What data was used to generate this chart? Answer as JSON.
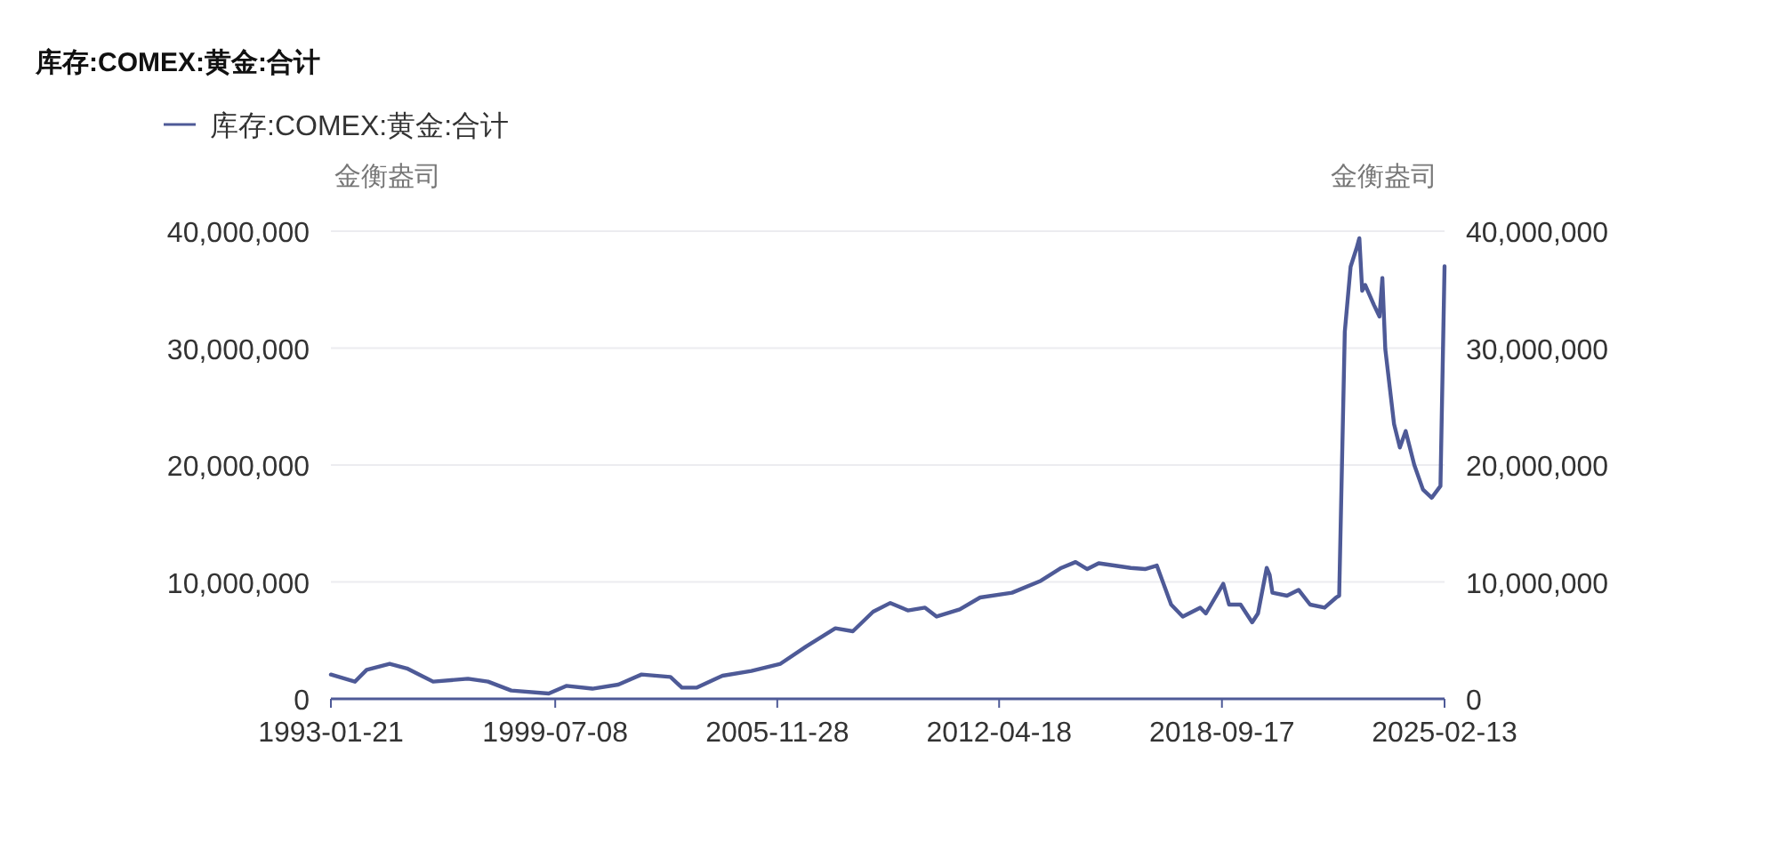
{
  "chart_data": {
    "type": "line",
    "title": "库存:COMEX:黄金:合计",
    "ylabel": "金衡盎司",
    "y2label": "金衡盎司",
    "legend": "top left",
    "grid": "y",
    "marker": "none",
    "line_style": "solid",
    "xlim": [
      "1993-01-21",
      "2025-02-13"
    ],
    "xticks": [
      "1993-01-21",
      "1999-07-08",
      "2005-11-28",
      "2012-04-18",
      "2018-09-17",
      "2025-02-13"
    ],
    "ylim": [
      0,
      40000000
    ],
    "yticks": [
      0,
      {
        "value": 10000000,
        "label": "10,000,000"
      },
      {
        "value": 20000000,
        "label": "20,000,000"
      },
      {
        "value": 30000000,
        "label": "30,000,000"
      },
      {
        "value": 40000000,
        "label": "40,000,000"
      }
    ],
    "y2lim": [
      0,
      40000000
    ],
    "y2ticks": [
      0,
      {
        "value": 10000000,
        "label": "10,000,000"
      },
      {
        "value": 20000000,
        "label": "20,000,000"
      },
      {
        "value": 30000000,
        "label": "30,000,000"
      },
      {
        "value": 40000000,
        "label": "40,000,000"
      }
    ],
    "series": [
      {
        "name": "库存:COMEX:黄金:合计",
        "color": "#4e5a97",
        "x": [
          "1993-01-21",
          "1993-10",
          "1994-02",
          "1994-10",
          "1995-04",
          "1996-01",
          "1997-01",
          "1997-08",
          "1998-04",
          "1999-05",
          "1999-11",
          "2000-08",
          "2001-05",
          "2002-01",
          "2002-11",
          "2003-03",
          "2003-08",
          "2004-05",
          "2005-03",
          "2006-01",
          "2006-10",
          "2007-08",
          "2008-02",
          "2008-09",
          "2009-03",
          "2009-09",
          "2010-03",
          "2010-07",
          "2011-03",
          "2011-10",
          "2012-09",
          "2013-07",
          "2014-02",
          "2014-07",
          "2014-11",
          "2015-03",
          "2016-02",
          "2016-07",
          "2016-11",
          "2017-04",
          "2017-08",
          "2018-02",
          "2018-04",
          "2018-10",
          "2018-12",
          "2019-04",
          "2019-08",
          "2019-10",
          "2020-01",
          "2020-02",
          "2020-03",
          "2020-08",
          "2020-12",
          "2021-04",
          "2021-09",
          "2022-01",
          "2022-02",
          "2022-04",
          "2022-06",
          "2022-08",
          "2022-09",
          "2022-10",
          "2022-11",
          "2023-02",
          "2023-04",
          "2023-05",
          "2023-06",
          "2023-09",
          "2023-11",
          "2024-01",
          "2024-04",
          "2024-07",
          "2024-10",
          "2025-01",
          "2025-02-13"
        ],
        "values": [
          2080000,
          1470000,
          2480000,
          3000000,
          2600000,
          1470000,
          1720000,
          1470000,
          710000,
          460000,
          1110000,
          870000,
          1220000,
          2080000,
          1870000,
          960000,
          960000,
          1980000,
          2390000,
          3000000,
          4500000,
          6040000,
          5780000,
          7450000,
          8200000,
          7560000,
          7800000,
          7040000,
          7650000,
          8670000,
          9080000,
          10100000,
          11200000,
          11700000,
          11100000,
          11600000,
          11200000,
          11100000,
          11400000,
          8060000,
          7040000,
          7800000,
          7300000,
          9840000,
          8060000,
          8060000,
          6540000,
          7300000,
          11200000,
          10600000,
          9080000,
          8820000,
          9320000,
          8060000,
          7800000,
          8670000,
          8820000,
          31400000,
          36960000,
          38500000,
          39400000,
          34900000,
          35400000,
          33700000,
          32700000,
          36000000,
          29900000,
          23500000,
          21500000,
          22900000,
          20000000,
          17900000,
          17200000,
          18200000,
          37000000
        ]
      }
    ]
  }
}
